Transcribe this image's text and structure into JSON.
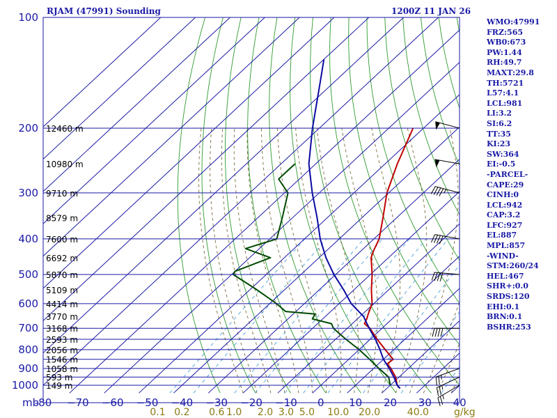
{
  "header": {
    "station": "RJAM (47991) Sounding",
    "time": "1200Z 11 JAN 26"
  },
  "stats": [
    "WMO:47991",
    "FRZ:565",
    "WB0:673",
    "PW:1.44",
    "RH:49.7",
    "MAXT:29.8",
    "TH:5721",
    "L57:4.1",
    "LCL:981",
    "LI:3.2",
    "SI:6.2",
    "TT:35",
    "KI:23",
    "SW:364",
    "EI:-0.5",
    "-PARCEL-",
    "CAPE:29",
    "CINH:0",
    "LCL:942",
    "CAP:3.2",
    "LFC:927",
    "EL:887",
    "MPL:857",
    "-WIND-",
    "STM:260/24",
    "HEL:467",
    "SHR+:0.0",
    "SRDS:120",
    "EHI:0.1",
    "BRN:0.1",
    "BSHR:253"
  ],
  "chart_data": {
    "type": "line",
    "title": "RJAM (47991) Sounding",
    "subtitle": "1200Z 11 JAN 26",
    "x_unit_label": "mb",
    "mixing_ratio_unit_label": "g/kg",
    "y_axis": {
      "scale": "log",
      "range_mb": [
        1000,
        100
      ],
      "pressure_ticks": [
        {
          "value": 100,
          "label": "100"
        },
        {
          "value": 200,
          "label": "200"
        },
        {
          "value": 300,
          "label": "300"
        },
        {
          "value": 400,
          "label": "400"
        },
        {
          "value": 500,
          "label": "500"
        },
        {
          "value": 600,
          "label": "600"
        },
        {
          "value": 700,
          "label": "700"
        },
        {
          "value": 800,
          "label": "800"
        },
        {
          "value": 900,
          "label": "900"
        },
        {
          "value": 1000,
          "label": "1000"
        }
      ]
    },
    "x_axis": {
      "range_c": [
        -80,
        40
      ],
      "temperature_ticks": [
        {
          "value": -80,
          "label": "-80"
        },
        {
          "value": -70,
          "label": "−70"
        },
        {
          "value": -60,
          "label": "−60"
        },
        {
          "value": -50,
          "label": "−50"
        },
        {
          "value": -40,
          "label": "−40"
        },
        {
          "value": -30,
          "label": "−30"
        },
        {
          "value": -20,
          "label": "−20"
        },
        {
          "value": -10,
          "label": "−10"
        },
        {
          "value": 0,
          "label": "0"
        },
        {
          "value": 10,
          "label": "10"
        },
        {
          "value": 20,
          "label": "20"
        },
        {
          "value": 30,
          "label": "30"
        },
        {
          "value": 40,
          "label": "40"
        }
      ],
      "mixing_ratio_ticks": [
        {
          "value": -47,
          "label": "0.1"
        },
        {
          "value": -40,
          "label": "0.2"
        },
        {
          "value": -30,
          "label": "0.6"
        },
        {
          "value": -25,
          "label": "1.0"
        },
        {
          "value": -16,
          "label": "2.0"
        },
        {
          "value": -10,
          "label": "3.0"
        },
        {
          "value": -4,
          "label": "5.0"
        },
        {
          "value": 5,
          "label": "10.0"
        },
        {
          "value": 14,
          "label": "20.0"
        },
        {
          "value": 28,
          "label": "40.0"
        }
      ]
    },
    "height_labels": [
      {
        "p": 200,
        "label": "12460 m"
      },
      {
        "p": 250,
        "label": "10980 m"
      },
      {
        "p": 300,
        "label": "9710 m"
      },
      {
        "p": 350,
        "label": "8579 m"
      },
      {
        "p": 400,
        "label": "7600 m"
      },
      {
        "p": 450,
        "label": "6692 m"
      },
      {
        "p": 500,
        "label": "5870 m"
      },
      {
        "p": 550,
        "label": "5109 m"
      },
      {
        "p": 600,
        "label": "4414 m"
      },
      {
        "p": 650,
        "label": "3770 m"
      },
      {
        "p": 700,
        "label": "3168 m"
      },
      {
        "p": 750,
        "label": "2593 m"
      },
      {
        "p": 800,
        "label": "2056 m"
      },
      {
        "p": 850,
        "label": "1546 m"
      },
      {
        "p": 900,
        "label": "1058 m"
      },
      {
        "p": 950,
        "label": "593 m"
      },
      {
        "p": 1000,
        "label": "149 m"
      }
    ],
    "series": [
      {
        "color": "#c00000",
        "points": [
          {
            "p": 1020,
            "t": 23.8
          },
          {
            "p": 1000,
            "t": 22
          },
          {
            "p": 950,
            "t": 19
          },
          {
            "p": 900,
            "t": 15
          },
          {
            "p": 875,
            "t": 12.5
          },
          {
            "p": 850,
            "t": 12.8
          },
          {
            "p": 800,
            "t": 7.5
          },
          {
            "p": 750,
            "t": 2
          },
          {
            "p": 700,
            "t": -3.5
          },
          {
            "p": 680,
            "t": -6.5
          },
          {
            "p": 660,
            "t": -7.3
          },
          {
            "p": 640,
            "t": -8.4
          },
          {
            "p": 600,
            "t": -10.5
          },
          {
            "p": 550,
            "t": -15
          },
          {
            "p": 500,
            "t": -19.5
          },
          {
            "p": 450,
            "t": -25
          },
          {
            "p": 430,
            "t": -26.5
          },
          {
            "p": 400,
            "t": -28.5
          },
          {
            "p": 350,
            "t": -34
          },
          {
            "p": 300,
            "t": -40.5
          },
          {
            "p": 250,
            "t": -46.5
          },
          {
            "p": 200,
            "t": -53
          }
        ]
      },
      {
        "color": "#004a00",
        "points": [
          {
            "p": 1000,
            "t": 20
          },
          {
            "p": 950,
            "t": 17
          },
          {
            "p": 900,
            "t": 11.5
          },
          {
            "p": 850,
            "t": 6
          },
          {
            "p": 800,
            "t": 0
          },
          {
            "p": 750,
            "t": -7
          },
          {
            "p": 700,
            "t": -14
          },
          {
            "p": 680,
            "t": -16
          },
          {
            "p": 660,
            "t": -23
          },
          {
            "p": 640,
            "t": -23.7
          },
          {
            "p": 630,
            "t": -33
          },
          {
            "p": 600,
            "t": -38
          },
          {
            "p": 550,
            "t": -48
          },
          {
            "p": 500,
            "t": -59.5
          },
          {
            "p": 490,
            "t": -60
          },
          {
            "p": 450,
            "t": -54
          },
          {
            "p": 425,
            "t": -64
          },
          {
            "p": 400,
            "t": -58
          },
          {
            "p": 350,
            "t": -63
          },
          {
            "p": 300,
            "t": -69
          },
          {
            "p": 275,
            "t": -76
          },
          {
            "p": 250,
            "t": -76
          }
        ]
      },
      {
        "color": "#0a0aa0",
        "points": [
          {
            "p": 1020,
            "t": 23.8
          },
          {
            "p": 1000,
            "t": 22
          },
          {
            "p": 950,
            "t": 18.5
          },
          {
            "p": 900,
            "t": 14.5
          },
          {
            "p": 850,
            "t": 10
          },
          {
            "p": 800,
            "t": 6
          },
          {
            "p": 750,
            "t": 1.5
          },
          {
            "p": 700,
            "t": -3.7
          },
          {
            "p": 650,
            "t": -9
          },
          {
            "p": 600,
            "t": -16.5
          },
          {
            "p": 550,
            "t": -23
          },
          {
            "p": 500,
            "t": -30.5
          },
          {
            "p": 450,
            "t": -38
          },
          {
            "p": 400,
            "t": -45.5
          },
          {
            "p": 350,
            "t": -53
          },
          {
            "p": 300,
            "t": -62
          },
          {
            "p": 250,
            "t": -72
          },
          {
            "p": 200,
            "t": -82
          },
          {
            "p": 150,
            "t": -94
          },
          {
            "p": 130,
            "t": -100
          }
        ]
      }
    ],
    "wind_barbs": [
      {
        "p": 1000,
        "dir": 240,
        "kt": 25
      },
      {
        "p": 950,
        "dir": 245,
        "kt": 25
      },
      {
        "p": 900,
        "dir": 250,
        "kt": 25
      },
      {
        "p": 700,
        "dir": 270,
        "kt": 40
      },
      {
        "p": 500,
        "dir": 275,
        "kt": 40
      },
      {
        "p": 400,
        "dir": 280,
        "kt": 40
      },
      {
        "p": 300,
        "dir": 285,
        "kt": 45
      },
      {
        "p": 250,
        "dir": 280,
        "kt": 50
      },
      {
        "p": 200,
        "dir": 285,
        "kt": 50
      }
    ],
    "grid": true
  }
}
